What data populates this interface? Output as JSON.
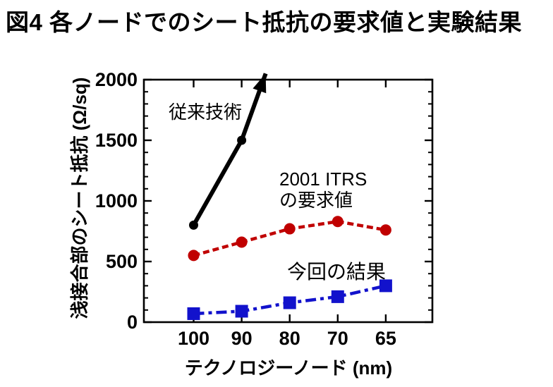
{
  "title": "図4  各ノードでのシート抵抗の要求値と実験結果",
  "colors": {
    "conventional": "#000000",
    "itrs": "#c00000",
    "result": "#1212cc"
  },
  "chart_data": {
    "type": "line",
    "xlabel": "テクノロジーノード (nm)",
    "ylabel": "浅接合部のシート抵抗 (Ω/sq)",
    "x_categories": [
      "100",
      "90",
      "80",
      "70",
      "65"
    ],
    "ylim": [
      0,
      2000
    ],
    "y_major_ticks": [
      0,
      500,
      1000,
      1500,
      2000
    ],
    "y_major_tick_labels": [
      "0",
      "500",
      "1000",
      "1500",
      "2000"
    ],
    "y_minor_step": 100,
    "grid": false,
    "legend_position": "inline-annotations",
    "series": [
      {
        "id": "conventional",
        "name": "従来技術",
        "color": "#000000",
        "line_style": "solid",
        "marker": "circle",
        "values": [
          800,
          1500,
          null,
          null,
          null
        ],
        "arrow_to": {
          "xi": 1.5,
          "value": 2050
        }
      },
      {
        "id": "itrs2001",
        "name": "2001 ITRS の要求値",
        "color": "#c00000",
        "line_style": "dashed",
        "marker": "circle",
        "values": [
          550,
          660,
          770,
          830,
          760
        ]
      },
      {
        "id": "this_work",
        "name": "今回の結果",
        "color": "#1212cc",
        "line_style": "dashdot",
        "marker": "square",
        "values": [
          70,
          90,
          160,
          210,
          300
        ]
      }
    ],
    "annotations": [
      {
        "id": "conventional",
        "text": "従来技術"
      },
      {
        "id": "itrs2001",
        "text": "2001 ITRS\nの要求値"
      },
      {
        "id": "this_work",
        "text": "今回の結果"
      }
    ]
  }
}
